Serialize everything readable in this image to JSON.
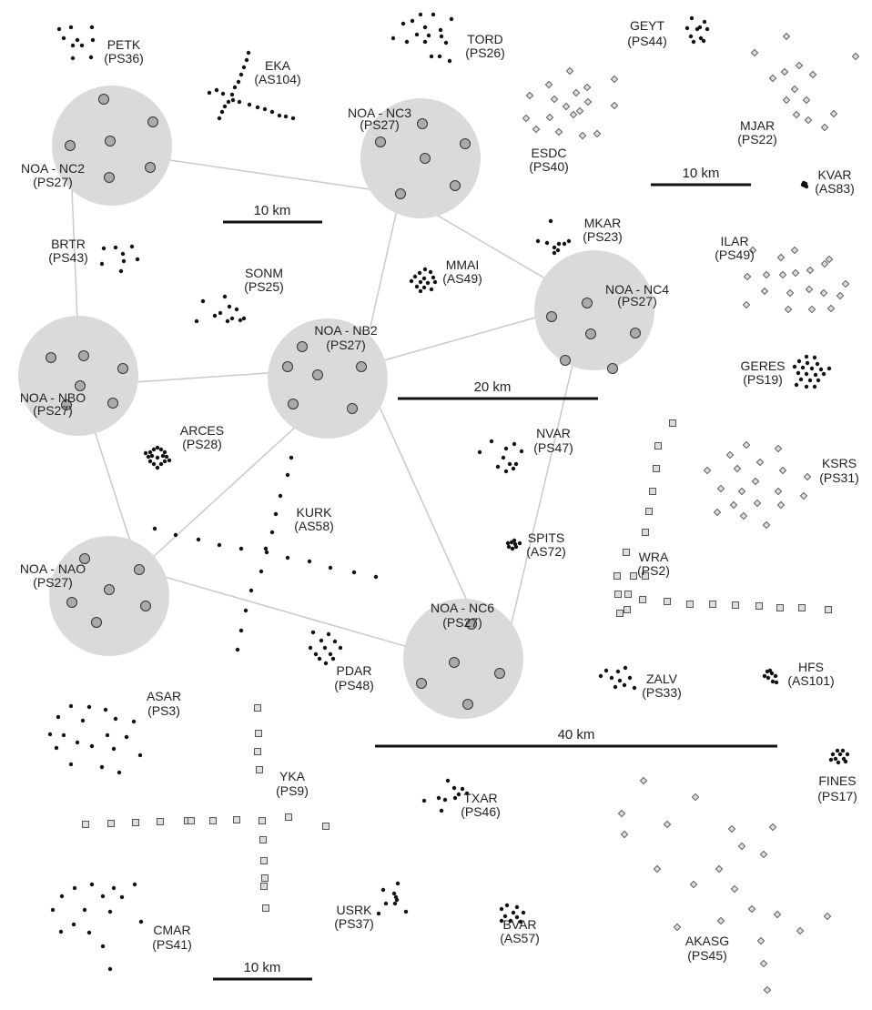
{
  "colors": {
    "circle_fill": "#d9dadb",
    "node_fill": "#a9aaab",
    "node_stroke": "#333333",
    "link": "#c9c9c9",
    "dot": "#111111",
    "marker_fill": "#dddddd",
    "marker_stroke": "#555555",
    "text": "#222222"
  },
  "network": {
    "sites": [
      {
        "name": "NOA - NC2",
        "code": "(PS27)"
      },
      {
        "name": "NOA - NC3",
        "code": "(PS27)"
      },
      {
        "name": "NOA - NC4",
        "code": "(PS27)"
      },
      {
        "name": "NOA - NB2",
        "code": "(PS27)"
      },
      {
        "name": "NOA - NBO",
        "code": "(PS27)"
      },
      {
        "name": "NOA - NAO",
        "code": "(PS27)"
      },
      {
        "name": "NOA - NC6",
        "code": "(PS27)"
      }
    ],
    "links": [
      [
        "NOA - NC2",
        "NOA - NC3"
      ],
      [
        "NOA - NC2",
        "NOA - NBO"
      ],
      [
        "NOA - NC3",
        "NOA - NC4"
      ],
      [
        "NOA - NC3",
        "NOA - NB2"
      ],
      [
        "NOA - NBO",
        "NOA - NB2"
      ],
      [
        "NOA - NBO",
        "NOA - NAO"
      ],
      [
        "NOA - NB2",
        "NOA - NC4"
      ],
      [
        "NOA - NB2",
        "NOA - NAO"
      ],
      [
        "NOA - NB2",
        "NOA - NC6"
      ],
      [
        "NOA - NAO",
        "NOA - NC6"
      ],
      [
        "NOA - NC4",
        "NOA - NC6"
      ]
    ]
  },
  "arrays": [
    {
      "name": "PETK",
      "code": "(PS36)",
      "marker": "dot"
    },
    {
      "name": "EKA",
      "code": "(AS104)",
      "marker": "dot"
    },
    {
      "name": "TORD",
      "code": "(PS26)",
      "marker": "dot"
    },
    {
      "name": "GEYT",
      "code": "(PS44)",
      "marker": "dot"
    },
    {
      "name": "MJAR",
      "code": "(PS22)",
      "marker": "diamond"
    },
    {
      "name": "ESDC",
      "code": "(PS40)",
      "marker": "diamond"
    },
    {
      "name": "KVAR",
      "code": "(AS83)",
      "marker": "dot"
    },
    {
      "name": "BRTR",
      "code": "(PS43)",
      "marker": "dot"
    },
    {
      "name": "MKAR",
      "code": "(PS23)",
      "marker": "dot"
    },
    {
      "name": "ILAR",
      "code": "(PS49)",
      "marker": "diamond"
    },
    {
      "name": "SONM",
      "code": "(PS25)",
      "marker": "dot"
    },
    {
      "name": "MMAI",
      "code": "(AS49)",
      "marker": "dot"
    },
    {
      "name": "GERES",
      "code": "(PS19)",
      "marker": "dot"
    },
    {
      "name": "ARCES",
      "code": "(PS28)",
      "marker": "dot"
    },
    {
      "name": "NVAR",
      "code": "(PS47)",
      "marker": "dot"
    },
    {
      "name": "KSRS",
      "code": "(PS31)",
      "marker": "diamond"
    },
    {
      "name": "KURK",
      "code": "(AS58)",
      "marker": "dot"
    },
    {
      "name": "SPITS",
      "code": "(AS72)",
      "marker": "dot"
    },
    {
      "name": "WRA",
      "code": "(PS2)",
      "marker": "square"
    },
    {
      "name": "PDAR",
      "code": "(PS48)",
      "marker": "dot"
    },
    {
      "name": "ZALV",
      "code": "(PS33)",
      "marker": "dot"
    },
    {
      "name": "HFS",
      "code": "(AS101)",
      "marker": "dot"
    },
    {
      "name": "ASAR",
      "code": "(PS3)",
      "marker": "dot"
    },
    {
      "name": "YKA",
      "code": "(PS9)",
      "marker": "square"
    },
    {
      "name": "FINES",
      "code": "(PS17)",
      "marker": "dot"
    },
    {
      "name": "TXAR",
      "code": "(PS46)",
      "marker": "dot"
    },
    {
      "name": "AKASG",
      "code": "(PS45)",
      "marker": "diamond"
    },
    {
      "name": "USRK",
      "code": "(PS37)",
      "marker": "dot"
    },
    {
      "name": "BVAR",
      "code": "(AS57)",
      "marker": "dot"
    },
    {
      "name": "CMAR",
      "code": "(PS41)",
      "marker": "dot"
    }
  ],
  "scale_bars": [
    {
      "label": "10 km"
    },
    {
      "label": "10 km"
    },
    {
      "label": "20 km"
    },
    {
      "label": "40 km"
    },
    {
      "label": "10 km"
    }
  ]
}
